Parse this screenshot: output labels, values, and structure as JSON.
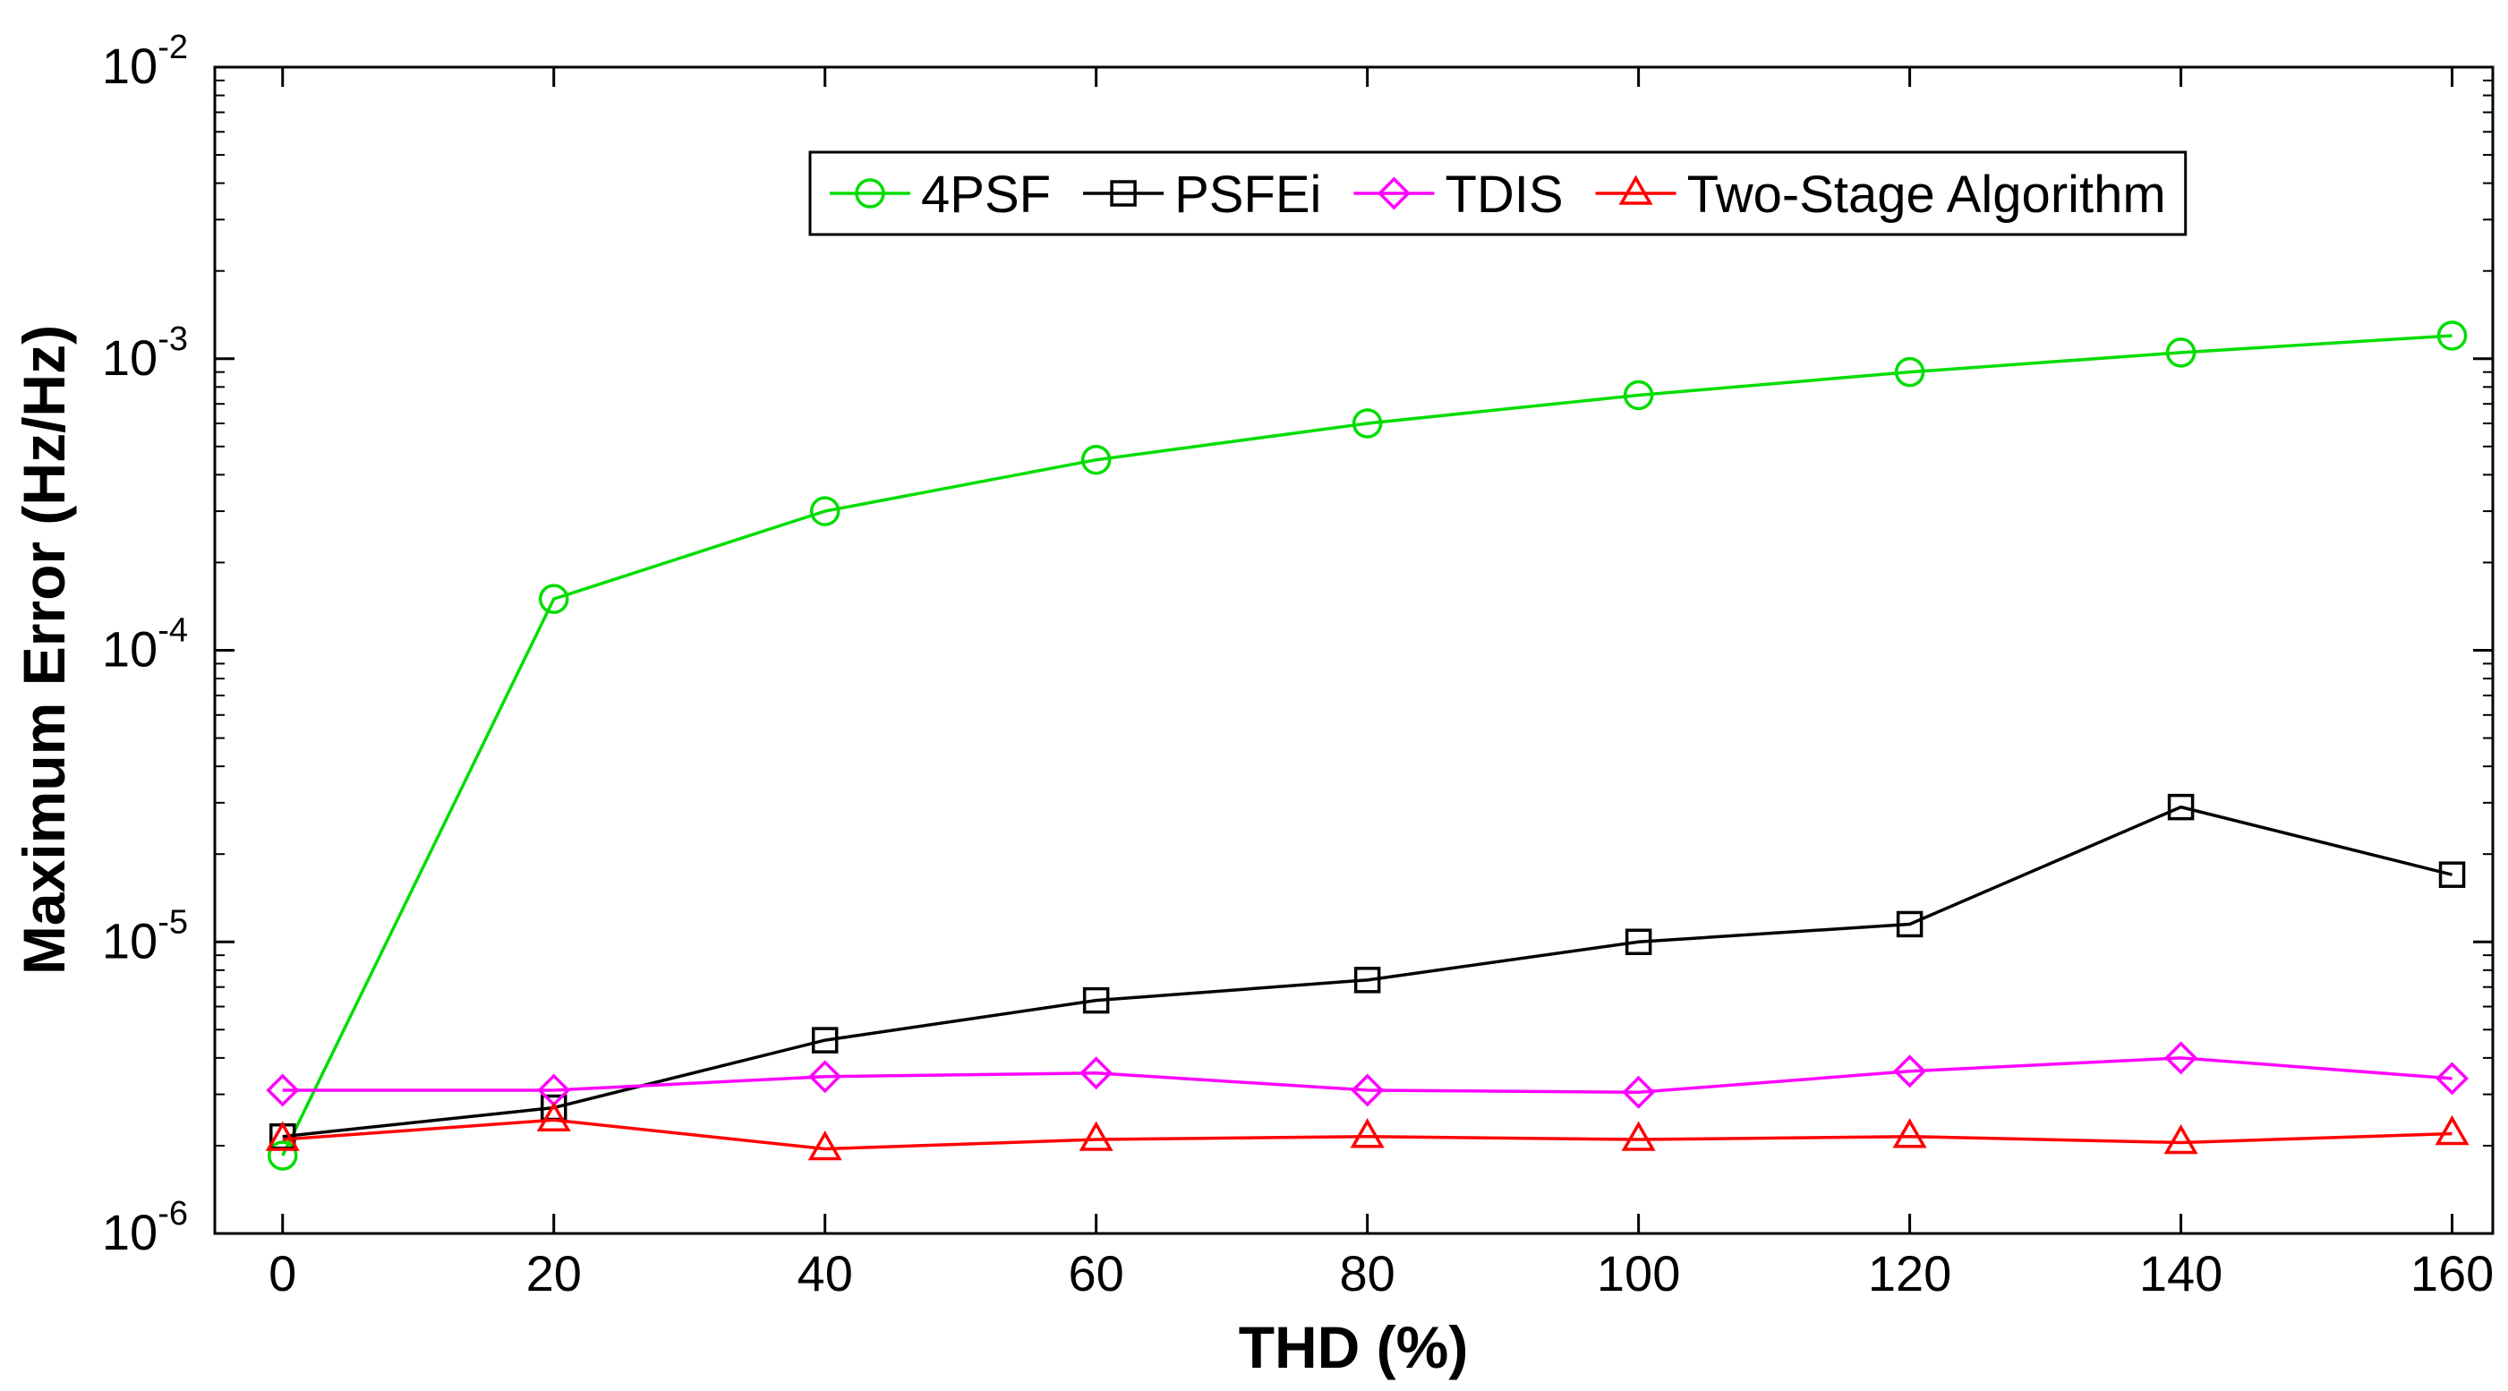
{
  "chart_data": {
    "type": "line",
    "title": "",
    "xlabel": "THD (%)",
    "ylabel": "Maximum Error (Hz/Hz)",
    "yscale": "log",
    "xlim": [
      -5,
      163
    ],
    "ylim": [
      1e-06,
      0.01
    ],
    "grid": false,
    "legend_position": "top-right",
    "x": [
      0,
      20,
      40,
      60,
      80,
      100,
      120,
      140,
      160
    ],
    "x_ticks": [
      0,
      20,
      40,
      60,
      80,
      100,
      120,
      140,
      160
    ],
    "x_tick_labels": [
      "0",
      "20",
      "40",
      "60",
      "80",
      "100",
      "120",
      "140",
      "160"
    ],
    "y_ticks": [
      {
        "value": 1e-06,
        "base": "10",
        "exp": "-6"
      },
      {
        "value": 1e-05,
        "base": "10",
        "exp": "-5"
      },
      {
        "value": 0.0001,
        "base": "10",
        "exp": "-4"
      },
      {
        "value": 0.001,
        "base": "10",
        "exp": "-3"
      },
      {
        "value": 0.01,
        "base": "10",
        "exp": "-2"
      }
    ],
    "series": [
      {
        "name": "4PSF",
        "color": "#00dd00",
        "marker": "circle",
        "values": [
          1.85e-06,
          0.00015,
          0.0003,
          0.00045,
          0.0006,
          0.00075,
          0.0009,
          0.00105,
          0.0012
        ]
      },
      {
        "name": "PSFEi",
        "color": "#000000",
        "marker": "square",
        "values": [
          2.15e-06,
          2.7e-06,
          4.6e-06,
          6.3e-06,
          7.4e-06,
          1e-05,
          1.15e-05,
          2.9e-05,
          1.7e-05
        ]
      },
      {
        "name": "TDIS",
        "color": "#ff00ff",
        "marker": "diamond",
        "values": [
          3.1e-06,
          3.1e-06,
          3.45e-06,
          3.55e-06,
          3.1e-06,
          3.05e-06,
          3.6e-06,
          4e-06,
          3.4e-06
        ]
      },
      {
        "name": "Two-Stage Algorithm",
        "color": "#ff0000",
        "marker": "triangle",
        "values": [
          2.1e-06,
          2.45e-06,
          1.95e-06,
          2.1e-06,
          2.15e-06,
          2.1e-06,
          2.15e-06,
          2.05e-06,
          2.2e-06
        ]
      }
    ]
  }
}
